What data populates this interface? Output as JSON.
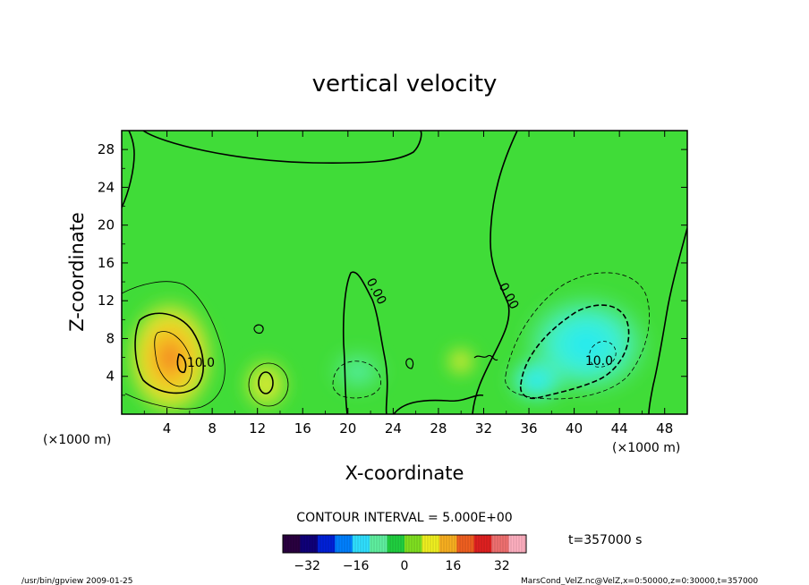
{
  "chart_data": {
    "type": "heatmap",
    "title": "vertical velocity",
    "xlabel": "X-coordinate",
    "ylabel": "Z-coordinate",
    "x_unit": "(×1000 m)",
    "y_unit": "(×1000 m)",
    "xlim": [
      0,
      50
    ],
    "ylim": [
      0,
      30
    ],
    "x_ticks": [
      4,
      8,
      12,
      16,
      20,
      24,
      28,
      32,
      36,
      40,
      44,
      48
    ],
    "y_ticks": [
      4,
      8,
      12,
      16,
      20,
      24,
      28
    ],
    "grid": false,
    "contour_interval_label": "CONTOUR INTERVAL = 5.000E+00",
    "contour_labels": [
      {
        "text": "10.0",
        "x": 7.0,
        "z": 5.0
      },
      {
        "text": "0.00",
        "x": 22.2,
        "z": 12.8
      },
      {
        "text": "0.00",
        "x": 33.9,
        "z": 12.3
      },
      {
        "text": "10.0",
        "x": 42.2,
        "z": 5.2
      }
    ],
    "features": [
      {
        "kind": "updraft",
        "x": 5.0,
        "z": 6.0,
        "peak": 22
      },
      {
        "kind": "updraft",
        "x": 12.8,
        "z": 3.2,
        "peak": 10
      },
      {
        "kind": "updraft",
        "x": 30.5,
        "z": 5.4,
        "peak": 6
      },
      {
        "kind": "downdraft",
        "x": 41.5,
        "z": 7.0,
        "peak": -18
      },
      {
        "kind": "downdraft",
        "x": 37.0,
        "z": 3.5,
        "peak": -15
      },
      {
        "kind": "downdraft",
        "x": 21.0,
        "z": 4.5,
        "peak": -7
      }
    ],
    "colorbar": {
      "ticks": [
        -32,
        -16,
        0,
        16,
        32
      ],
      "range": [
        -40,
        40
      ],
      "colors": [
        "#2a0040",
        "#10007a",
        "#0020d8",
        "#0080ff",
        "#30e0ff",
        "#60f0a0",
        "#20d040",
        "#80e020",
        "#f0f020",
        "#f8b020",
        "#f06020",
        "#e02020",
        "#f07070",
        "#ffb0c0"
      ]
    },
    "time_label": "t=357000 s"
  },
  "footer": {
    "left": "/usr/bin/gpview   2009-01-25",
    "right": "MarsCond_VelZ.nc@VelZ,x=0:50000,z=0:30000,t=357000"
  }
}
